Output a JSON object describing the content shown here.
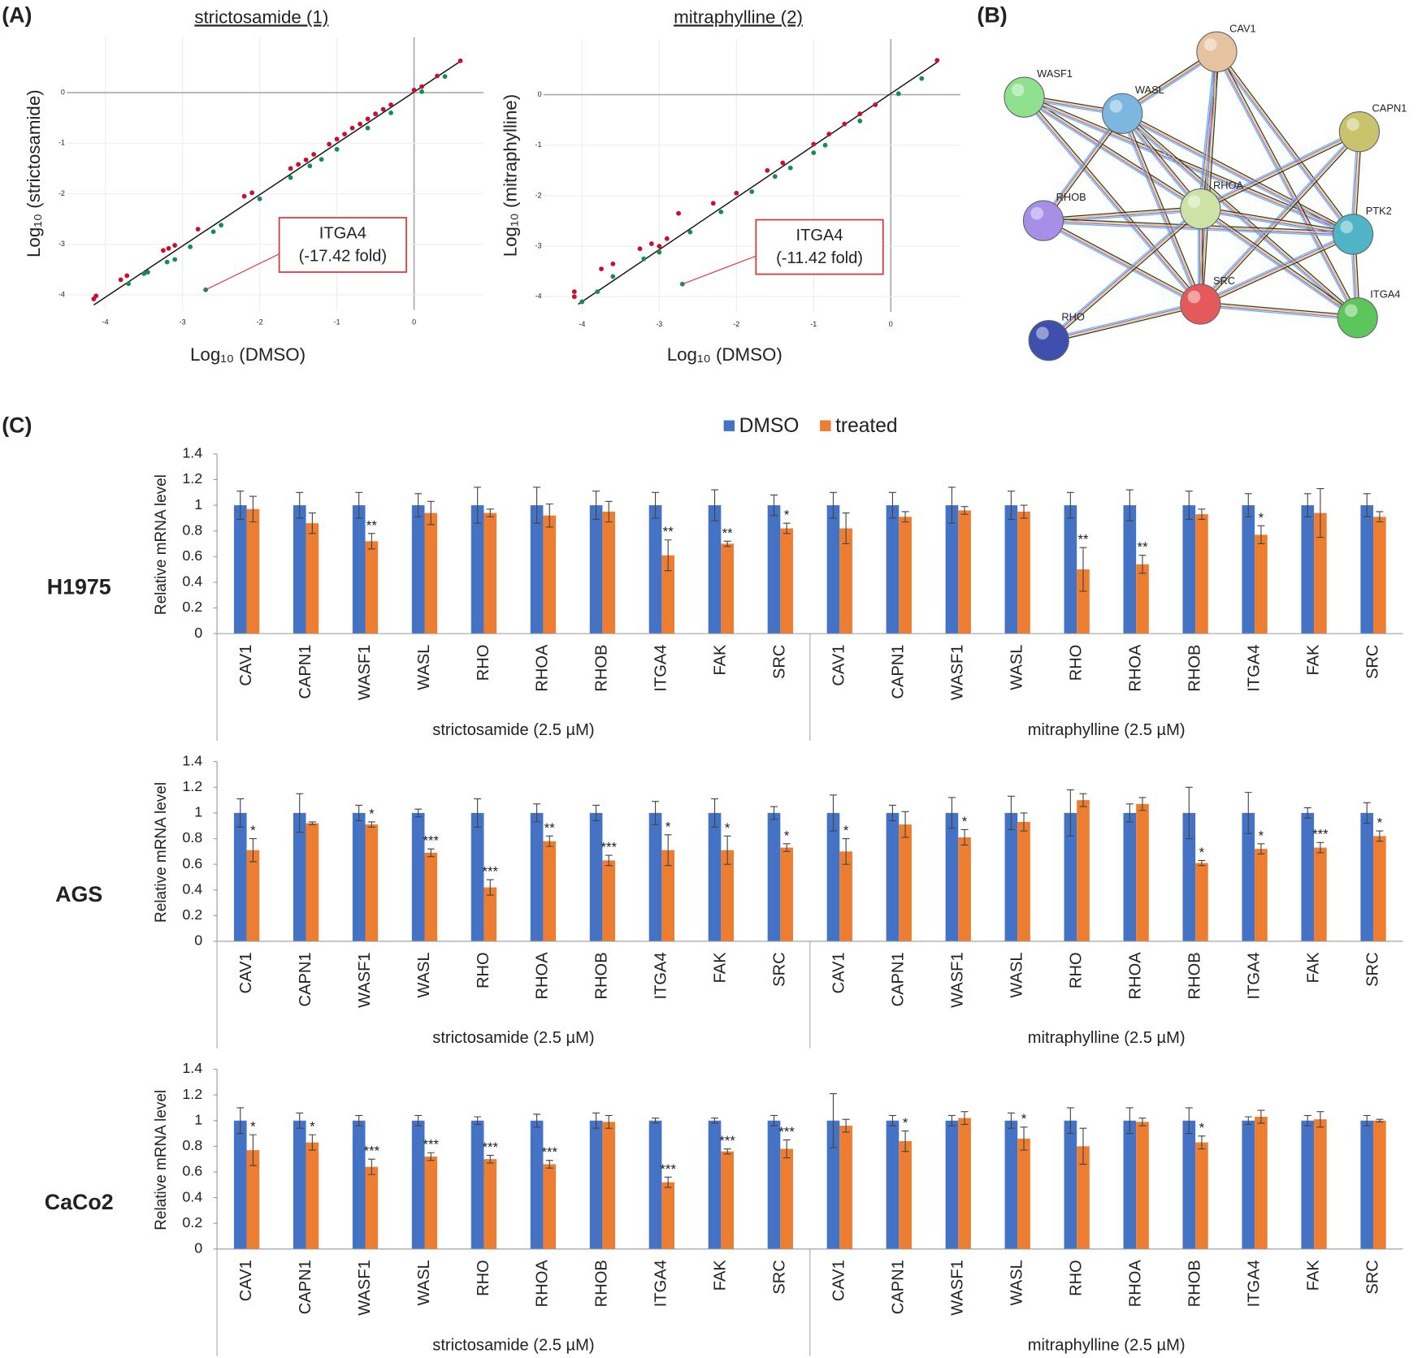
{
  "panel_labels": [
    "(A)",
    "(B)",
    "(C)"
  ],
  "chart_data": [
    {
      "type": "scatter",
      "title": "strictosamide (1)",
      "xlabel": "Log₁₀ (DMSO)",
      "ylabel": "Log₁₀ (strictosamide)",
      "xlim": [
        -4.5,
        0.9
      ],
      "ylim": [
        -4.3,
        1.1
      ],
      "xticks": [
        -4,
        -3,
        -2,
        -1,
        0
      ],
      "yticks": [
        -4,
        -3,
        -2,
        -1,
        0
      ],
      "grid": true,
      "axis_at_zero": true,
      "series": [
        {
          "color": "#c8102e",
          "x": [
            -4.15,
            -4.12,
            -3.8,
            -3.72,
            -3.25,
            -3.18,
            -3.1,
            -2.8,
            -2.2,
            -2.1,
            -1.6,
            -1.5,
            -1.4,
            -1.3,
            -1.1,
            -1.0,
            -0.9,
            -0.8,
            -0.7,
            -0.6,
            -0.5,
            -0.4,
            -0.3,
            0.0,
            0.1,
            0.3,
            0.6
          ],
          "values": [
            -4.08,
            -4.02,
            -3.7,
            -3.62,
            -3.12,
            -3.08,
            -3.02,
            -2.7,
            -2.05,
            -1.98,
            -1.5,
            -1.42,
            -1.33,
            -1.22,
            -1.02,
            -0.92,
            -0.82,
            -0.7,
            -0.62,
            -0.52,
            -0.42,
            -0.33,
            -0.24,
            0.05,
            0.12,
            0.33,
            0.63
          ]
        },
        {
          "color": "#1a8a55",
          "x": [
            -3.7,
            -3.5,
            -3.45,
            -3.2,
            -3.1,
            -2.9,
            -2.6,
            -2.5,
            -2.0,
            -1.6,
            -1.35,
            -1.2,
            -1.0,
            -0.6,
            -0.3,
            0.1,
            0.4,
            -2.7
          ],
          "values": [
            -3.78,
            -3.58,
            -3.55,
            -3.35,
            -3.3,
            -3.05,
            -2.75,
            -2.62,
            -2.1,
            -1.68,
            -1.45,
            -1.32,
            -1.12,
            -0.7,
            -0.4,
            0.02,
            0.32,
            -3.9
          ]
        }
      ],
      "trend": {
        "x": [
          -4.15,
          0.6
        ],
        "values": [
          -4.2,
          0.62
        ]
      },
      "annotation": {
        "text": [
          "ITGA4",
          "(-17.42 fold)"
        ],
        "x": -2.7,
        "y": -3.9
      }
    },
    {
      "type": "scatter",
      "title": "mitraphylline (2)",
      "xlabel": "Log₁₀ (DMSO)",
      "ylabel": "Log₁₀ (mitraphylline)",
      "xlim": [
        -4.5,
        0.9
      ],
      "ylim": [
        -4.3,
        1.1
      ],
      "xticks": [
        -4,
        -3,
        -2,
        -1,
        0
      ],
      "yticks": [
        -4,
        -3,
        -2,
        -1,
        0
      ],
      "grid": true,
      "axis_at_zero": true,
      "series": [
        {
          "color": "#c8102e",
          "x": [
            -4.1,
            -4.1,
            -3.75,
            -3.6,
            -3.25,
            -3.1,
            -3.0,
            -2.9,
            -2.75,
            -2.3,
            -2.0,
            -1.6,
            -1.4,
            -1.0,
            -0.8,
            -0.6,
            -0.4,
            -0.2,
            0.6
          ],
          "values": [
            -3.9,
            -4.0,
            -3.45,
            -3.35,
            -3.05,
            -2.95,
            -3.0,
            -2.85,
            -2.35,
            -2.15,
            -1.95,
            -1.5,
            -1.35,
            -0.98,
            -0.78,
            -0.58,
            -0.38,
            -0.2,
            0.68
          ]
        },
        {
          "color": "#1a8a55",
          "x": [
            -4.0,
            -3.8,
            -3.6,
            -3.2,
            -3.0,
            -2.6,
            -2.2,
            -1.8,
            -1.5,
            -1.3,
            -1.0,
            -0.85,
            -0.4,
            0.1,
            0.4,
            -2.7
          ],
          "values": [
            -4.1,
            -3.9,
            -3.6,
            -3.25,
            -3.12,
            -2.72,
            -2.32,
            -1.92,
            -1.62,
            -1.45,
            -1.15,
            -1.0,
            -0.52,
            0.02,
            0.32,
            -3.75
          ]
        }
      ],
      "trend": {
        "x": [
          -4.05,
          0.6
        ],
        "values": [
          -4.15,
          0.64
        ]
      },
      "annotation": {
        "text": [
          "ITGA4",
          "(-11.42 fold)"
        ],
        "x": -2.7,
        "y": -3.75
      }
    },
    {
      "type": "bar",
      "title": "H1975",
      "ylabel": "Relative mRNA level",
      "categories": [
        "CAV1",
        "CAPN1",
        "WASF1",
        "WASL",
        "RHO",
        "RHOA",
        "RHOB",
        "ITGA4",
        "FAK",
        "SRC",
        "CAV1",
        "CAPN1",
        "WASF1",
        "WASL",
        "RHO",
        "RHOA",
        "RHOB",
        "ITGA4",
        "FAK",
        "SRC"
      ],
      "group_labels": [
        "strictosamide (2.5 µM)",
        "mitraphylline (2.5 µM)"
      ],
      "ylim": [
        0,
        1.4
      ],
      "yticks": [
        0,
        0.2,
        0.4,
        0.6,
        0.8,
        1,
        1.2,
        1.4
      ],
      "series": [
        {
          "name": "DMSO",
          "color": "#4472c4",
          "values": [
            1,
            1,
            1,
            1,
            1,
            1,
            1,
            1,
            1,
            1,
            1,
            1,
            1,
            1,
            1,
            1,
            1,
            1,
            1,
            1
          ],
          "errors": [
            0.11,
            0.1,
            0.1,
            0.09,
            0.14,
            0.14,
            0.11,
            0.1,
            0.12,
            0.08,
            0.1,
            0.1,
            0.14,
            0.11,
            0.1,
            0.12,
            0.11,
            0.09,
            0.09,
            0.09
          ]
        },
        {
          "name": "treated",
          "color": "#ed7d31",
          "values": [
            0.97,
            0.86,
            0.72,
            0.94,
            0.94,
            0.92,
            0.95,
            0.61,
            0.7,
            0.82,
            0.82,
            0.91,
            0.96,
            0.95,
            0.5,
            0.54,
            0.93,
            0.77,
            0.94,
            0.91
          ],
          "errors": [
            0.1,
            0.08,
            0.06,
            0.09,
            0.03,
            0.09,
            0.08,
            0.12,
            0.02,
            0.04,
            0.12,
            0.04,
            0.03,
            0.05,
            0.17,
            0.07,
            0.04,
            0.07,
            0.19,
            0.04
          ],
          "annotations": [
            null,
            null,
            "**",
            null,
            null,
            null,
            null,
            "**",
            "**",
            "*",
            null,
            null,
            null,
            null,
            "**",
            "**",
            null,
            "*",
            null,
            null
          ]
        }
      ]
    },
    {
      "type": "bar",
      "title": "AGS",
      "ylabel": "Relative mRNA level",
      "categories": [
        "CAV1",
        "CAPN1",
        "WASF1",
        "WASL",
        "RHO",
        "RHOA",
        "RHOB",
        "ITGA4",
        "FAK",
        "SRC",
        "CAV1",
        "CAPN1",
        "WASF1",
        "WASL",
        "RHO",
        "RHOA",
        "RHOB",
        "ITGA4",
        "FAK",
        "SRC"
      ],
      "group_labels": [
        "strictosamide (2.5 µM)",
        "mitraphylline (2.5 µM)"
      ],
      "ylim": [
        0,
        1.4
      ],
      "yticks": [
        0,
        0.2,
        0.4,
        0.6,
        0.8,
        1,
        1.2,
        1.4
      ],
      "series": [
        {
          "color": "#4472c4",
          "values": [
            1,
            1,
            1,
            1,
            1,
            1,
            1,
            1,
            1,
            1,
            1,
            1,
            1,
            1,
            1,
            1,
            1,
            1,
            1,
            1
          ],
          "errors": [
            0.11,
            0.15,
            0.06,
            0.03,
            0.11,
            0.07,
            0.06,
            0.09,
            0.11,
            0.05,
            0.14,
            0.06,
            0.12,
            0.13,
            0.18,
            0.07,
            0.2,
            0.16,
            0.04,
            0.08
          ]
        },
        {
          "color": "#ed7d31",
          "values": [
            0.71,
            0.92,
            0.91,
            0.69,
            0.42,
            0.78,
            0.63,
            0.71,
            0.71,
            0.73,
            0.7,
            0.91,
            0.81,
            0.93,
            1.1,
            1.07,
            0.61,
            0.72,
            0.73,
            0.82
          ],
          "errors": [
            0.09,
            0.01,
            0.02,
            0.03,
            0.06,
            0.04,
            0.04,
            0.12,
            0.11,
            0.03,
            0.1,
            0.1,
            0.06,
            0.07,
            0.05,
            0.05,
            0.02,
            0.04,
            0.04,
            0.04
          ],
          "annotations": [
            "*",
            null,
            "*",
            "***",
            "***",
            "**",
            "***",
            "*",
            "*",
            "*",
            "*",
            null,
            "*",
            null,
            null,
            null,
            "*",
            "*",
            "***",
            "*"
          ]
        }
      ]
    },
    {
      "type": "bar",
      "title": "CaCo2",
      "ylabel": "Relative mRNA level",
      "categories": [
        "CAV1",
        "CAPN1",
        "WASF1",
        "WASL",
        "RHO",
        "RHOA",
        "RHOB",
        "ITGA4",
        "FAK",
        "SRC",
        "CAV1",
        "CAPN1",
        "WASF1",
        "WASL",
        "RHO",
        "RHOA",
        "RHOB",
        "ITGA4",
        "FAK",
        "SRC"
      ],
      "group_labels": [
        "strictosamide (2.5 µM)",
        "mitraphylline (2.5 µM)"
      ],
      "ylim": [
        0,
        1.4
      ],
      "yticks": [
        0,
        0.2,
        0.4,
        0.6,
        0.8,
        1,
        1.2,
        1.4
      ],
      "series": [
        {
          "color": "#4472c4",
          "values": [
            1,
            1,
            1,
            1,
            1,
            1,
            1,
            1,
            1,
            1,
            1,
            1,
            1,
            1,
            1,
            1,
            1,
            1,
            1,
            1
          ],
          "errors": [
            0.1,
            0.06,
            0.04,
            0.04,
            0.03,
            0.05,
            0.06,
            0.02,
            0.02,
            0.04,
            0.21,
            0.04,
            0.04,
            0.06,
            0.1,
            0.1,
            0.1,
            0.03,
            0.04,
            0.04
          ]
        },
        {
          "color": "#ed7d31",
          "values": [
            0.77,
            0.83,
            0.64,
            0.72,
            0.7,
            0.66,
            0.99,
            0.52,
            0.76,
            0.78,
            0.96,
            0.84,
            1.02,
            0.86,
            0.8,
            0.99,
            0.83,
            1.03,
            1.01,
            1.0
          ],
          "errors": [
            0.12,
            0.06,
            0.06,
            0.03,
            0.03,
            0.03,
            0.05,
            0.04,
            0.02,
            0.07,
            0.05,
            0.08,
            0.05,
            0.09,
            0.14,
            0.03,
            0.05,
            0.05,
            0.06,
            0.01
          ],
          "annotations": [
            "*",
            "*",
            "***",
            "***",
            "***",
            "***",
            null,
            "***",
            "***",
            "***",
            null,
            "*",
            null,
            "*",
            null,
            null,
            "*",
            null,
            null,
            null
          ]
        }
      ]
    }
  ],
  "network": {
    "nodes": [
      {
        "label": "CAV1",
        "color": "#e6c3a0"
      },
      {
        "label": "WASF1",
        "color": "#8fe08f"
      },
      {
        "label": "WASL",
        "color": "#7db6de"
      },
      {
        "label": "CAPN1",
        "color": "#c9c36e"
      },
      {
        "label": "RHOB",
        "color": "#a78ee6"
      },
      {
        "label": "RHOA",
        "color": "#cde3a6"
      },
      {
        "label": "PTK2",
        "color": "#4fb5c6"
      },
      {
        "label": "SRC",
        "color": "#e45a5a"
      },
      {
        "label": "ITGA4",
        "color": "#5cc65c"
      },
      {
        "label": "RHO",
        "color": "#3f4fae"
      }
    ],
    "edges": [
      [
        "WASF1",
        "WASL"
      ],
      [
        "WASF1",
        "RHOA"
      ],
      [
        "WASF1",
        "SRC"
      ],
      [
        "WASF1",
        "PTK2"
      ],
      [
        "WASL",
        "CAV1"
      ],
      [
        "WASL",
        "RHOA"
      ],
      [
        "WASL",
        "SRC"
      ],
      [
        "WASL",
        "PTK2"
      ],
      [
        "WASL",
        "RHOB"
      ],
      [
        "WASL",
        "ITGA4"
      ],
      [
        "CAV1",
        "RHOA"
      ],
      [
        "CAV1",
        "SRC"
      ],
      [
        "CAV1",
        "PTK2"
      ],
      [
        "CAV1",
        "ITGA4"
      ],
      [
        "CAPN1",
        "RHOA"
      ],
      [
        "CAPN1",
        "SRC"
      ],
      [
        "CAPN1",
        "PTK2"
      ],
      [
        "RHOB",
        "RHOA"
      ],
      [
        "RHOB",
        "SRC"
      ],
      [
        "RHOB",
        "PTK2"
      ],
      [
        "RHOA",
        "PTK2"
      ],
      [
        "RHOA",
        "SRC"
      ],
      [
        "RHOA",
        "ITGA4"
      ],
      [
        "PTK2",
        "SRC"
      ],
      [
        "PTK2",
        "ITGA4"
      ],
      [
        "SRC",
        "ITGA4"
      ],
      [
        "SRC",
        "RHO"
      ],
      [
        "RHOA",
        "RHO"
      ]
    ]
  }
}
